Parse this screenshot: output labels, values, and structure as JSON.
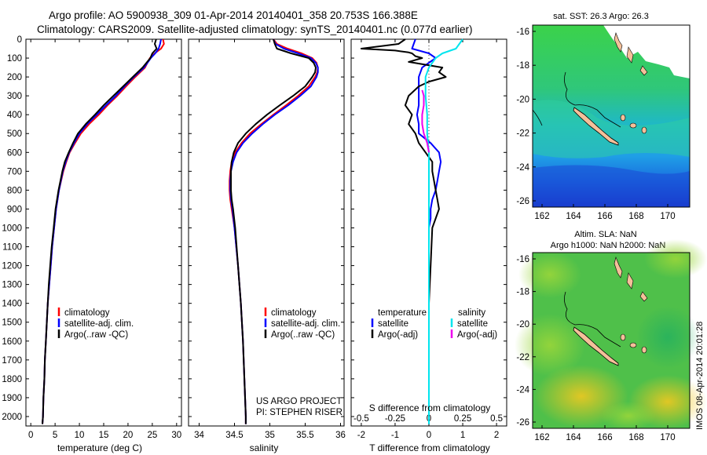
{
  "header": {
    "line1": "Argo profile: AO 5900938_309 01-Apr-2014 20140401_358 20.753S 166.388E",
    "line2": "Climatology: CARS2009. Satellite-adjusted climatology: synTS_20140401.nc (0.077d earlier)"
  },
  "colors": {
    "climatology": "#ff0000",
    "satellite": "#0000ff",
    "argo": "#000000",
    "salinity_satellite": "#00e5ee",
    "salinity_argo": "#ee00ee"
  },
  "depth_axis": {
    "ticks": [
      "0",
      "100",
      "200",
      "300",
      "400",
      "500",
      "600",
      "700",
      "800",
      "900",
      "1000",
      "1100",
      "1200",
      "1300",
      "1400",
      "1500",
      "1600",
      "1700",
      "1800",
      "1900",
      "2000"
    ]
  },
  "chart_data": [
    {
      "type": "line",
      "name": "temperature-profile",
      "xlabel": "temperature (deg C)",
      "xlim": [
        -1,
        31
      ],
      "ylim": [
        2050,
        0
      ],
      "xticks": [
        "0",
        "5",
        "10",
        "15",
        "20",
        "25",
        "30"
      ],
      "xtick_values": [
        0,
        5,
        10,
        15,
        20,
        25,
        30
      ],
      "legend": [
        "climatology",
        "satellite-adj. clim.",
        "Argo(..raw -QC)"
      ],
      "depth": [
        0,
        25,
        50,
        75,
        100,
        150,
        200,
        250,
        300,
        350,
        400,
        450,
        500,
        550,
        600,
        650,
        700,
        800,
        900,
        1000,
        1100,
        1200,
        1300,
        1400,
        1500,
        1600,
        1700,
        1800,
        1900,
        2000,
        2040
      ],
      "series": [
        {
          "name": "climatology",
          "color_key": "climatology",
          "values": [
            27.2,
            27.4,
            26.8,
            25.5,
            24.5,
            23.5,
            21.5,
            19.6,
            17.8,
            15.8,
            14.0,
            12.0,
            10.3,
            9.1,
            8.0,
            7.3,
            6.7,
            5.8,
            5.2,
            4.8,
            4.4,
            4.1,
            3.8,
            3.5,
            3.3,
            3.1,
            2.9,
            2.8,
            2.6,
            2.5,
            2.4
          ]
        },
        {
          "name": "satellite-adj. clim.",
          "color_key": "satellite",
          "values": [
            26.8,
            26.6,
            26.3,
            25.6,
            24.7,
            23.3,
            21.2,
            19.3,
            17.5,
            15.5,
            13.6,
            11.6,
            10.0,
            8.9,
            7.9,
            7.2,
            6.6,
            5.8,
            5.2,
            4.8,
            4.4,
            4.1,
            3.8,
            3.5,
            3.3,
            3.1,
            2.9,
            2.8,
            2.6,
            2.5,
            2.4
          ]
        },
        {
          "name": "Argo(..raw -QC)",
          "color_key": "argo",
          "values": [
            25.8,
            25.5,
            25.9,
            25.0,
            24.6,
            23.0,
            21.0,
            19.0,
            17.0,
            15.0,
            13.2,
            11.3,
            9.7,
            8.7,
            7.8,
            7.0,
            6.5,
            5.7,
            5.1,
            4.7,
            4.3,
            4.0,
            3.7,
            3.5,
            3.3,
            3.1,
            2.9,
            2.8,
            2.6,
            2.5,
            2.4
          ]
        }
      ]
    },
    {
      "type": "line",
      "name": "salinity-profile",
      "xlabel": "salinity",
      "xlim": [
        33.85,
        36.05
      ],
      "ylim": [
        2050,
        0
      ],
      "xticks": [
        "34",
        "34.5",
        "35",
        "35.5",
        "36"
      ],
      "xtick_values": [
        34,
        34.5,
        35,
        35.5,
        36
      ],
      "legend": [
        "climatology",
        "satellite-adj. clim.",
        "Argo(..raw -QC)"
      ],
      "annotation": [
        "US ARGO PROJECT",
        "PI: STEPHEN RISER"
      ],
      "depth": [
        0,
        25,
        50,
        75,
        100,
        125,
        150,
        175,
        200,
        250,
        300,
        350,
        400,
        450,
        500,
        550,
        600,
        650,
        700,
        750,
        800,
        850,
        900,
        1000,
        1200,
        1400,
        1600,
        1800,
        2000,
        2040
      ],
      "series": [
        {
          "name": "climatology",
          "color_key": "climatology",
          "values": [
            35.05,
            35.1,
            35.25,
            35.45,
            35.6,
            35.66,
            35.68,
            35.67,
            35.64,
            35.55,
            35.4,
            35.23,
            35.05,
            34.88,
            34.72,
            34.6,
            34.51,
            34.46,
            34.44,
            34.43,
            34.43,
            34.44,
            34.46,
            34.5,
            34.55,
            34.59,
            34.62,
            34.64,
            34.66,
            34.66
          ]
        },
        {
          "name": "satellite-adj. clim.",
          "color_key": "satellite",
          "values": [
            35.05,
            35.08,
            35.2,
            35.4,
            35.58,
            35.65,
            35.68,
            35.68,
            35.66,
            35.58,
            35.43,
            35.26,
            35.07,
            34.9,
            34.75,
            34.62,
            34.53,
            34.48,
            34.45,
            34.44,
            34.44,
            34.45,
            34.47,
            34.5,
            34.55,
            34.59,
            34.62,
            34.64,
            34.66,
            34.66
          ]
        },
        {
          "name": "Argo(..raw -QC)",
          "color_key": "argo",
          "values": [
            35.05,
            35.07,
            35.1,
            35.3,
            35.55,
            35.62,
            35.65,
            35.64,
            35.6,
            35.5,
            35.33,
            35.14,
            34.96,
            34.8,
            34.66,
            34.55,
            34.49,
            34.46,
            34.45,
            34.45,
            34.45,
            34.46,
            34.48,
            34.51,
            34.55,
            34.59,
            34.62,
            34.64,
            34.66,
            34.66
          ]
        }
      ]
    },
    {
      "type": "line",
      "name": "difference-profile",
      "xlabel": "T difference from climatology",
      "xlabel_top": "S difference from climatology",
      "xlim": [
        -2.3,
        2.3
      ],
      "ylim": [
        2050,
        0
      ],
      "xticks": [
        "-2",
        "-1",
        "0",
        "1",
        "2"
      ],
      "xtick_values": [
        -2,
        -1,
        0,
        1,
        2
      ],
      "sticks": [
        "-0.5",
        "-0.25",
        "0",
        "0.25",
        "0.5"
      ],
      "stick_positions_T_units": [
        -2,
        -1,
        0,
        1,
        2
      ],
      "legend_temperature": [
        "temperature",
        "satellite",
        "Argo(-adj)"
      ],
      "legend_salinity": [
        "salinity",
        "satellite",
        "Argo(-adj)"
      ],
      "series": [
        {
          "name": "temperature satellite",
          "color_key": "satellite",
          "depth": [
            0,
            50,
            75,
            100,
            150,
            200,
            250,
            300,
            350,
            400,
            450,
            500,
            550,
            600,
            650,
            700,
            750,
            800,
            850,
            900,
            950,
            1000,
            1200,
            1400,
            1600,
            1800,
            2000,
            2040
          ],
          "values": [
            -0.4,
            -0.5,
            0.0,
            0.2,
            -0.2,
            -0.3,
            -0.3,
            -0.3,
            -0.3,
            -0.35,
            -0.3,
            -0.3,
            0.05,
            0.3,
            0.35,
            0.3,
            0.25,
            0.2,
            0.1,
            0.05,
            0.05,
            0.0,
            0.0,
            0.0,
            0.0,
            0.0,
            0.0,
            0.0
          ]
        },
        {
          "name": "temperature Argo(-adj)",
          "color_key": "argo",
          "depth": [
            0,
            25,
            50,
            60,
            70,
            75,
            90,
            100,
            120,
            150,
            175,
            200,
            225,
            250,
            300,
            350,
            400,
            450,
            500,
            550,
            600,
            650,
            700,
            750,
            800,
            850,
            900,
            950,
            1000,
            1200,
            1400,
            1600,
            1800,
            2000,
            2040
          ],
          "values": [
            -0.7,
            -0.9,
            -2.0,
            -1.0,
            -0.6,
            -0.5,
            -0.4,
            -0.2,
            -0.6,
            0.4,
            0.3,
            0.5,
            0.0,
            -0.3,
            -0.6,
            -0.7,
            -0.5,
            -0.6,
            -0.4,
            -0.3,
            -0.1,
            0.1,
            0.1,
            0.15,
            0.2,
            0.25,
            0.3,
            0.2,
            0.1,
            0.05,
            0.0,
            0.0,
            0.0,
            0.0,
            0.0
          ]
        },
        {
          "name": "salinity satellite",
          "color_key": "salinity_satellite",
          "depth": [
            0,
            50,
            75,
            100,
            150,
            200,
            300,
            400,
            500,
            600,
            700,
            800,
            900,
            1000,
            1200,
            1400,
            1600,
            1800,
            2000,
            2040
          ],
          "values": [
            1.0,
            0.8,
            0.4,
            0.2,
            0.0,
            -0.1,
            -0.1,
            -0.05,
            -0.05,
            0.0,
            0.0,
            0.0,
            0.0,
            0.0,
            0.0,
            0.0,
            0.0,
            0.0,
            0.0,
            0.0
          ]
        },
        {
          "name": "salinity Argo(-adj)",
          "color_key": "salinity_argo",
          "depth": [
            270,
            300,
            350,
            400,
            450,
            500,
            550,
            600
          ],
          "values": [
            -0.2,
            -0.15,
            -0.15,
            -0.2,
            -0.2,
            -0.15,
            -0.05,
            0.0
          ]
        }
      ]
    }
  ],
  "maps": {
    "top": {
      "title": "sat. SST: 26.3 Argo: 26.3",
      "yticks": [
        "-16",
        "-18",
        "-20",
        "-22",
        "-24",
        "-26"
      ],
      "xticks": [
        "162",
        "164",
        "166",
        "168",
        "170"
      ]
    },
    "bottom": {
      "title1": "Altim. SLA: NaN",
      "title2": "Argo h1000: NaN h2000: NaN",
      "yticks": [
        "-16",
        "-18",
        "-20",
        "-22",
        "-24",
        "-26"
      ],
      "xticks": [
        "162",
        "164",
        "166",
        "168",
        "170"
      ]
    }
  },
  "watermark": "IMOS 08-Apr-2014 20:01:28"
}
